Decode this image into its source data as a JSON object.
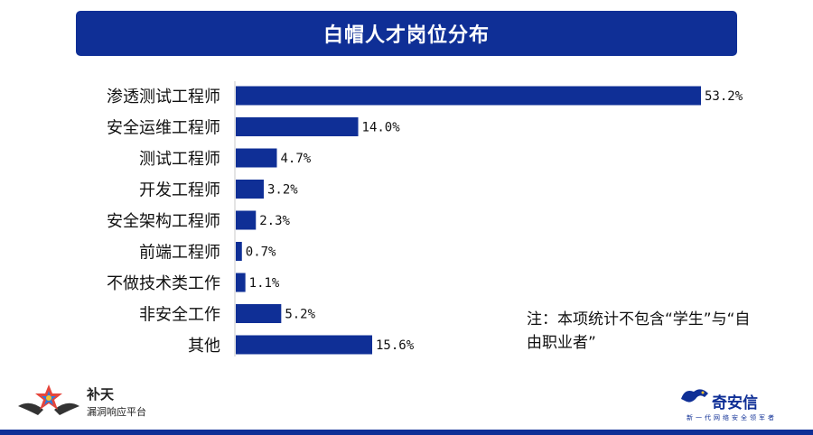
{
  "colors": {
    "brand": "#0f2f96",
    "bar": "#0f2f96",
    "text": "#111111"
  },
  "header": {
    "title": "白帽人才岗位分布"
  },
  "chart_data": {
    "type": "bar",
    "orientation": "horizontal",
    "categories": [
      "渗透测试工程师",
      "安全运维工程师",
      "测试工程师",
      "开发工程师",
      "安全架构工程师",
      "前端工程师",
      "不做技术类工作",
      "非安全工作",
      "其他"
    ],
    "values": [
      53.2,
      14.0,
      4.7,
      3.2,
      2.3,
      0.7,
      1.1,
      5.2,
      15.6
    ],
    "value_labels": [
      "53.2%",
      "14.0%",
      "4.7%",
      "3.2%",
      "2.3%",
      "0.7%",
      "1.1%",
      "5.2%",
      "15.6%"
    ],
    "unit": "%",
    "xlim": [
      0,
      53.2
    ],
    "grid": false,
    "legend": "none"
  },
  "note": {
    "text": "注：本项统计不包含“学生”与“自由职业者”"
  },
  "logos": {
    "left": {
      "name": "补天",
      "subtitle": "漏洞响应平台",
      "icon": "star-emblem-icon"
    },
    "right": {
      "name": "奇安信",
      "subtitle": "新一代网络安全领军者",
      "icon": "dragon-logo-icon"
    }
  }
}
